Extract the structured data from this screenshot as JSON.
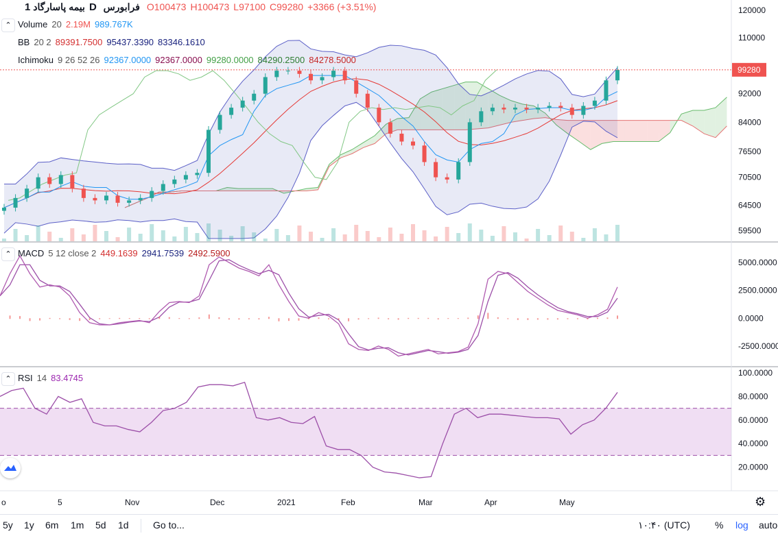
{
  "header": {
    "symbol": "بیمه پاسارگاد",
    "interval": "1D",
    "exchange": "فرابورس",
    "ohlc": {
      "o": "O100473",
      "h": "H100473",
      "l": "L97100",
      "c": "C99280"
    },
    "change": "+3366 (+3.51%)"
  },
  "indicators": {
    "volume": {
      "name": "Volume",
      "params": "20",
      "v1": "2.19M",
      "v2": "989.767K"
    },
    "bb": {
      "name": "BB",
      "params": "20 2",
      "v1": "89391.7500",
      "v2": "95437.3390",
      "v3": "83346.1610"
    },
    "ichimoku": {
      "name": "Ichimoku",
      "params": "9 26 52 26",
      "v1": "92367.0000",
      "v2": "92367.0000",
      "v3": "99280.0000",
      "v4": "84290.2500",
      "v5": "84278.5000"
    },
    "macd": {
      "name": "MACD",
      "params": "5 12 close 2",
      "v1": "449.1639",
      "v2": "2941.7539",
      "v3": "2492.5900"
    },
    "rsi": {
      "name": "RSI",
      "params": "14",
      "v1": "83.4745"
    }
  },
  "price_label": "99280",
  "time_labels": [
    "o",
    "5",
    "Nov",
    "Dec",
    "2021",
    "Feb",
    "Mar",
    "Apr",
    "May"
  ],
  "toolbar": {
    "ranges": [
      "5y",
      "1y",
      "6m",
      "1m",
      "5d",
      "1d"
    ],
    "goto": "Go to...",
    "clock": "۱۰:۴۰ (UTC)",
    "percent": "%",
    "log": "log",
    "auto": "auto"
  },
  "colors": {
    "up": "#26a69a",
    "down": "#ef5350",
    "bb": "#5b5fc7",
    "macd": "#b05bb0",
    "rsi": "#9c4fa8",
    "kumo_up": "#c8e6c9",
    "kumo_down": "#f8c5c5"
  },
  "chart_data": [
    {
      "type": "candlestick",
      "y_axis": {
        "scale": "log",
        "ticks": [
          120000,
          110000,
          99280,
          92000,
          84000,
          76500,
          70500,
          64500,
          59500
        ]
      },
      "close_series": [
        64000,
        66000,
        68000,
        70500,
        69000,
        71000,
        68000,
        66000,
        65500,
        66500,
        65000,
        65500,
        66000,
        67500,
        69000,
        70000,
        71000,
        71500,
        82000,
        86000,
        88000,
        90000,
        92000,
        97000,
        99000,
        99000,
        98000,
        96000,
        97000,
        99000,
        96000,
        92000,
        88000,
        84000,
        81000,
        79000,
        78000,
        74000,
        70500,
        70000,
        74000,
        84000,
        87000,
        88000,
        87500,
        88000,
        87500,
        88000,
        88500,
        88000,
        86000,
        88500,
        90000,
        96000,
        99280
      ],
      "last": {
        "open": 100473,
        "high": 100473,
        "low": 97100,
        "close": 99280
      }
    },
    {
      "type": "line",
      "name": "MACD 5 12 close 2",
      "y_axis": {
        "ticks": [
          5000,
          2500,
          0,
          -2500
        ]
      },
      "values": [
        2000,
        4000,
        5600,
        4000,
        2800,
        3000,
        2800,
        2000,
        500,
        -400,
        -600,
        -600,
        -400,
        -300,
        -200,
        -400,
        600,
        1400,
        1500,
        1400,
        2000,
        4800,
        5500,
        5000,
        4500,
        4200,
        3800,
        4800,
        3000,
        1500,
        200,
        0,
        500,
        200,
        -500,
        -2300,
        -2800,
        -2900,
        -2500,
        -2800,
        -3400,
        -3200,
        -3000,
        -2800,
        -3200,
        -3100,
        -3000,
        -2600,
        -500,
        3500,
        4200,
        4000,
        3200,
        2400,
        1800,
        1200,
        700,
        500,
        300,
        0,
        300,
        800,
        2800
      ]
    },
    {
      "type": "line",
      "name": "RSI 14",
      "y_axis": {
        "ticks": [
          100,
          80,
          60,
          40,
          20
        ],
        "range": [
          0,
          100
        ],
        "band": [
          30,
          70
        ]
      },
      "values": [
        80,
        85,
        87,
        70,
        65,
        80,
        75,
        78,
        58,
        55,
        55,
        52,
        50,
        58,
        68,
        70,
        75,
        88,
        90,
        90,
        89,
        92,
        62,
        60,
        62,
        58,
        57,
        63,
        38,
        35,
        35,
        30,
        20,
        16,
        15,
        13,
        11,
        12,
        40,
        65,
        70,
        62,
        65,
        65,
        64,
        63,
        62,
        62,
        61,
        48,
        56,
        60,
        70,
        83.47
      ]
    }
  ]
}
